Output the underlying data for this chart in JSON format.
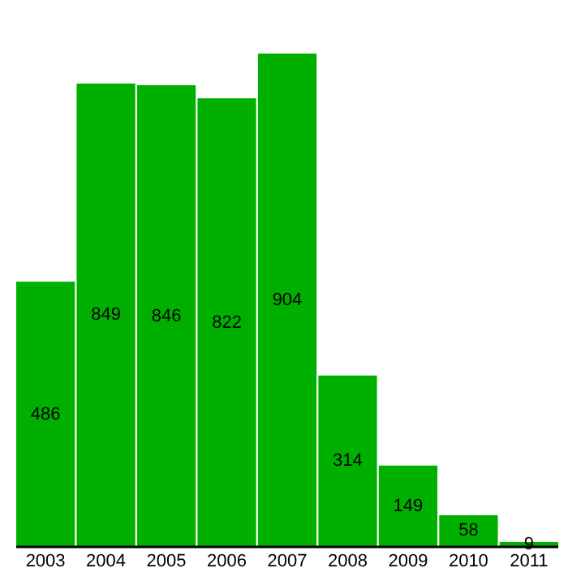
{
  "chart_data": {
    "type": "bar",
    "categories": [
      "2003",
      "2004",
      "2005",
      "2006",
      "2007",
      "2008",
      "2009",
      "2010",
      "2011"
    ],
    "values": [
      486,
      849,
      846,
      822,
      904,
      314,
      149,
      58,
      9
    ],
    "color": "#00b000",
    "data_labels": true
  }
}
